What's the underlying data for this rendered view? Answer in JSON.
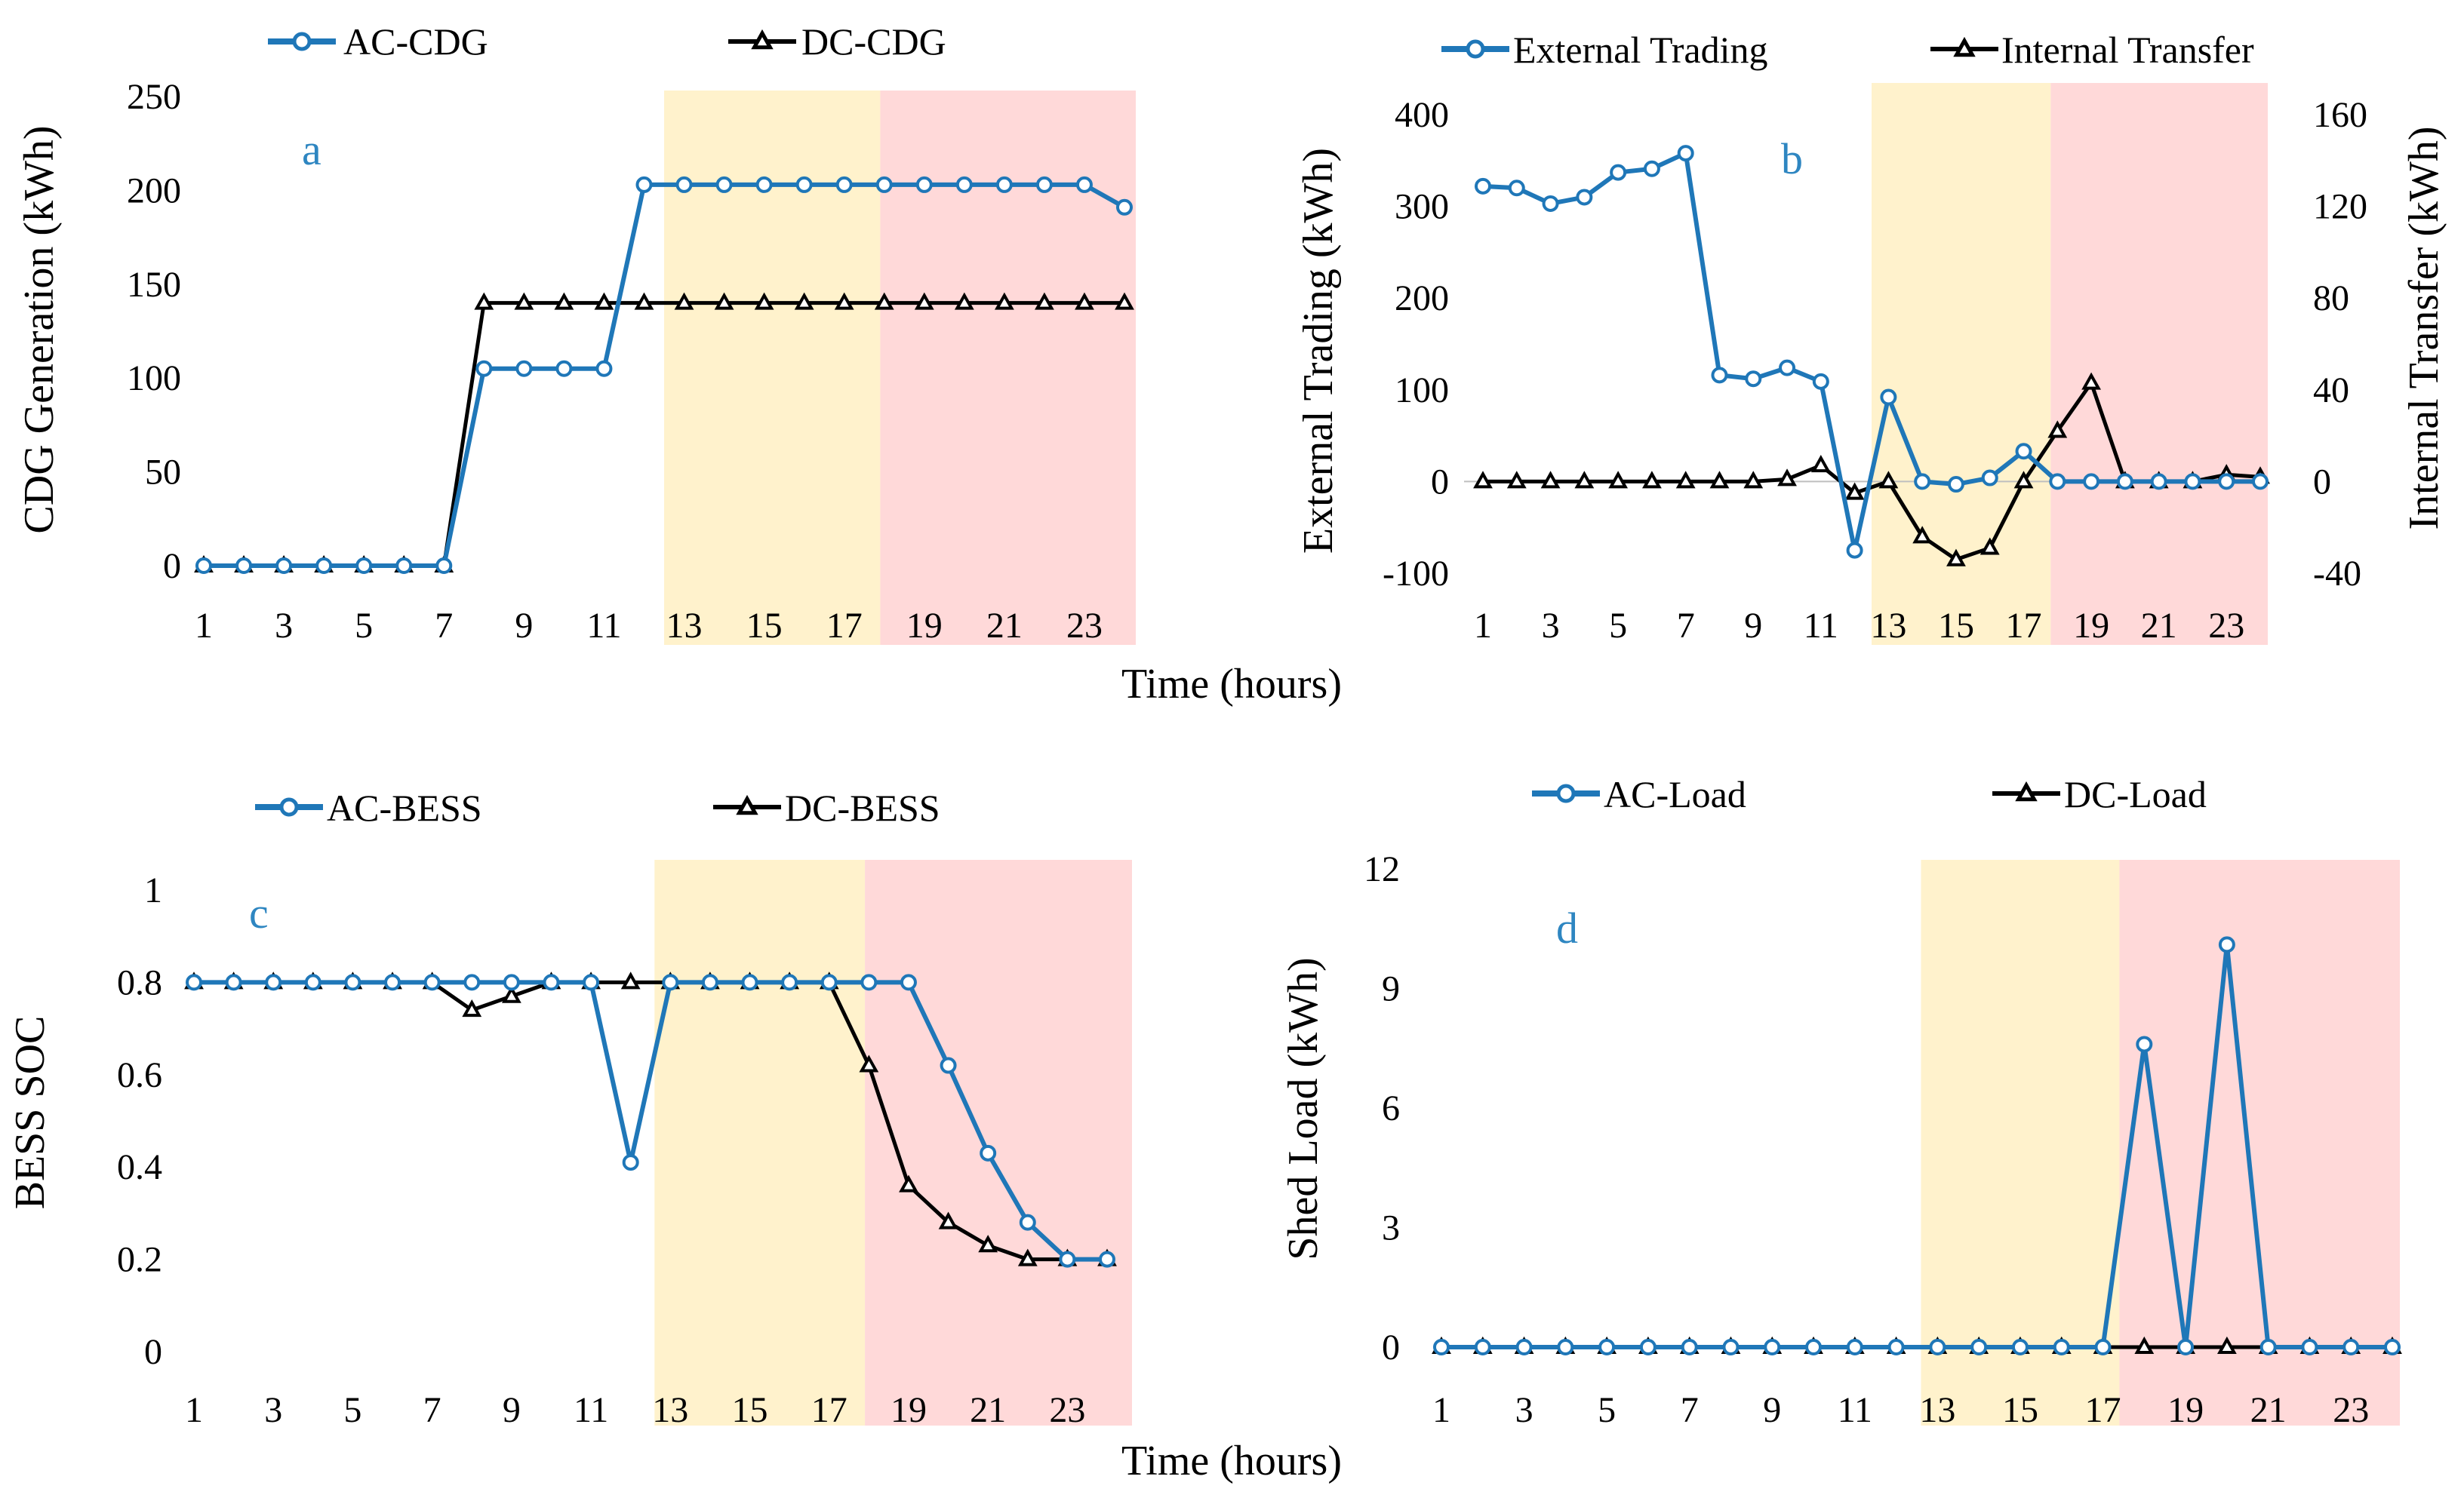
{
  "colors": {
    "ac": "#1F77B8",
    "dc": "#000000",
    "shade1": "#FFF2CC",
    "shade2": "#FFD9D9",
    "letter": "#2E86C1",
    "axis": "#BFBFBF"
  },
  "xlabel": "Time (hours)",
  "chart_data": [
    {
      "id": "a",
      "type": "line",
      "letter": "a",
      "ylabel": "CDG Generation (kWh)",
      "ylim": [
        0,
        250
      ],
      "yticks": [
        "0",
        "50",
        "100",
        "150",
        "200",
        "250"
      ],
      "xticks": [
        "1",
        "3",
        "5",
        "7",
        "9",
        "11",
        "13",
        "15",
        "17",
        "19",
        "21",
        "23"
      ],
      "x": [
        1,
        2,
        3,
        4,
        5,
        6,
        7,
        8,
        9,
        10,
        11,
        12,
        13,
        14,
        15,
        16,
        17,
        18,
        19,
        20,
        21,
        22,
        23,
        24
      ],
      "shaded": [
        [
          12.5,
          17.9
        ],
        [
          17.9,
          24.5
        ]
      ],
      "series": [
        {
          "name": "AC-CDG",
          "marker": "circle",
          "values": [
            0,
            0,
            0,
            0,
            0,
            0,
            0,
            105,
            105,
            105,
            105,
            203,
            203,
            203,
            203,
            203,
            203,
            203,
            203,
            203,
            203,
            203,
            203,
            191
          ]
        },
        {
          "name": "DC-CDG",
          "marker": "triangle",
          "values": [
            0,
            0,
            0,
            0,
            0,
            0,
            0,
            140,
            140,
            140,
            140,
            140,
            140,
            140,
            140,
            140,
            140,
            140,
            140,
            140,
            140,
            140,
            140,
            140
          ]
        }
      ]
    },
    {
      "id": "b",
      "type": "line",
      "letter": "b",
      "ylabel": "External Trading (kWh)",
      "y2label": "Internal Transfer (kWh)",
      "ylim": [
        -100,
        400
      ],
      "y2lim": [
        -40,
        160
      ],
      "yticks": [
        "-100",
        "0",
        "100",
        "200",
        "300",
        "400"
      ],
      "y2ticks": [
        "-40",
        "0",
        "40",
        "80",
        "120",
        "160"
      ],
      "xticks": [
        "1",
        "3",
        "5",
        "7",
        "9",
        "11",
        "13",
        "15",
        "17",
        "19",
        "21",
        "23"
      ],
      "x": [
        1,
        2,
        3,
        4,
        5,
        6,
        7,
        8,
        9,
        10,
        11,
        12,
        13,
        14,
        15,
        16,
        17,
        18,
        19,
        20,
        21,
        22,
        23,
        24
      ],
      "shaded": [
        [
          12.5,
          17.8
        ],
        [
          17.8,
          24.5
        ]
      ],
      "series": [
        {
          "name": "External Trading",
          "marker": "circle",
          "axis": "left",
          "values": [
            322,
            320,
            303,
            310,
            337,
            341,
            358,
            116,
            112,
            124,
            109,
            -75,
            92,
            0,
            -3,
            4,
            33,
            0,
            0,
            0,
            0,
            0,
            0,
            0
          ]
        },
        {
          "name": "Internal Transfer",
          "marker": "triangle",
          "axis": "right",
          "values": [
            0,
            0,
            0,
            0,
            0,
            0,
            0,
            0,
            0,
            1,
            7,
            -5,
            0,
            -24,
            -34,
            -29,
            0,
            22,
            43,
            0,
            0,
            0,
            3,
            2
          ]
        }
      ]
    },
    {
      "id": "c",
      "type": "line",
      "letter": "c",
      "ylabel": "BESS SOC",
      "ylim": [
        0,
        1
      ],
      "yticks": [
        "0",
        "0.2",
        "0.4",
        "0.6",
        "0.8",
        "1"
      ],
      "xticks": [
        "1",
        "3",
        "5",
        "7",
        "9",
        "11",
        "13",
        "15",
        "17",
        "19",
        "21",
        "23"
      ],
      "x": [
        1,
        2,
        3,
        4,
        5,
        6,
        7,
        8,
        9,
        10,
        11,
        12,
        13,
        14,
        15,
        16,
        17,
        18,
        19,
        20,
        21,
        22,
        23,
        24
      ],
      "shaded": [
        [
          12.6,
          17.9
        ],
        [
          17.9,
          24.7
        ]
      ],
      "series": [
        {
          "name": "AC-BESS",
          "marker": "circle",
          "values": [
            0.8,
            0.8,
            0.8,
            0.8,
            0.8,
            0.8,
            0.8,
            0.8,
            0.8,
            0.8,
            0.8,
            0.41,
            0.8,
            0.8,
            0.8,
            0.8,
            0.8,
            0.8,
            0.8,
            0.62,
            0.43,
            0.28,
            0.2,
            0.2
          ]
        },
        {
          "name": "DC-BESS",
          "marker": "triangle",
          "values": [
            0.8,
            0.8,
            0.8,
            0.8,
            0.8,
            0.8,
            0.8,
            0.74,
            0.77,
            0.8,
            0.8,
            0.8,
            0.8,
            0.8,
            0.8,
            0.8,
            0.8,
            0.62,
            0.36,
            0.28,
            0.23,
            0.2,
            0.2,
            0.2
          ]
        }
      ]
    },
    {
      "id": "d",
      "type": "line",
      "letter": "d",
      "ylabel": "Shed Load (kWh)",
      "ylim": [
        0,
        12
      ],
      "yticks": [
        "0",
        "3",
        "6",
        "9",
        "12"
      ],
      "xticks": [
        "1",
        "3",
        "5",
        "7",
        "9",
        "11",
        "13",
        "15",
        "17",
        "19",
        "21",
        "23"
      ],
      "x": [
        1,
        2,
        3,
        4,
        5,
        6,
        7,
        8,
        9,
        10,
        11,
        12,
        13,
        14,
        15,
        16,
        17,
        18,
        19,
        20,
        21,
        22,
        23,
        24
      ],
      "shaded": [
        [
          12.6,
          17.4
        ],
        [
          17.4,
          24.3
        ]
      ],
      "series": [
        {
          "name": "AC-Load",
          "marker": "circle",
          "values": [
            0,
            0,
            0,
            0,
            0,
            0,
            0,
            0,
            0,
            0,
            0,
            0,
            0,
            0,
            0,
            0,
            0,
            7.6,
            0,
            10.1,
            0,
            0,
            0,
            0
          ]
        },
        {
          "name": "DC-Load",
          "marker": "triangle",
          "values": [
            0,
            0,
            0,
            0,
            0,
            0,
            0,
            0,
            0,
            0,
            0,
            0,
            0,
            0,
            0,
            0,
            0,
            0,
            0,
            0,
            0,
            0,
            0,
            0
          ]
        }
      ]
    }
  ]
}
